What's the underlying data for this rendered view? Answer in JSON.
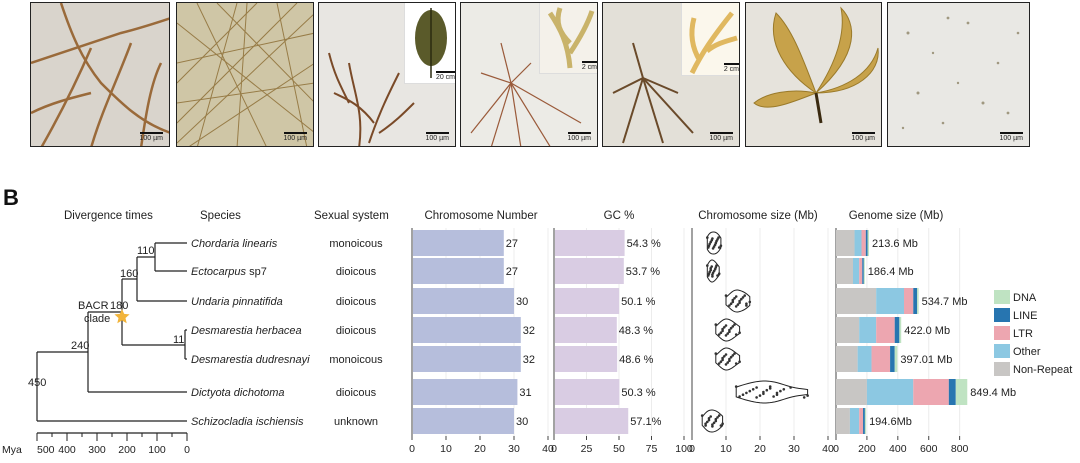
{
  "panel_b_letter": "B",
  "photos": [
    {
      "id": "p1",
      "scale": "100 µm",
      "bg": "#d9d4cc"
    },
    {
      "id": "p2",
      "scale": "100 µm",
      "bg": "#cfc6a6"
    },
    {
      "id": "p3",
      "scale": "100 µm",
      "bg": "#e8e6e2",
      "inset_scale": "20 cm"
    },
    {
      "id": "p4",
      "scale": "100 µm",
      "bg": "#ecebe6",
      "inset_scale": "2 cm"
    },
    {
      "id": "p5",
      "scale": "100 µm",
      "bg": "#e3e0d8",
      "inset_scale": "2 cm"
    },
    {
      "id": "p6",
      "scale": "100 µm",
      "bg": "#e6e3dc"
    },
    {
      "id": "p7",
      "scale": "100 µm",
      "bg": "#e9e8e4"
    }
  ],
  "headers": {
    "divergence": "Divergence times",
    "species": "Species",
    "sexual": "Sexual system",
    "chromosome_number": "Chromosome Number",
    "gc": "GC %",
    "chromosome_size": "Chromosome size (Mb)",
    "genome_size": "Genome size (Mb)"
  },
  "tree": {
    "node_labels": [
      "110",
      "160",
      "180",
      "11",
      "240",
      "450"
    ],
    "clade_label": [
      "BACR",
      "clade"
    ],
    "axis_unit": "Mya",
    "axis_ticks": [
      500,
      400,
      300,
      200,
      100,
      0
    ],
    "axis_tick_labels": [
      "500",
      "400",
      "300",
      "200",
      "100",
      "0"
    ]
  },
  "chart_data": [
    {
      "type": "bar",
      "title": "Chromosome Number",
      "categories": [
        "Chordaria linearis",
        "Ectocarpus sp7",
        "Undaria pinnatifida",
        "Desmarestia herbacea",
        "Desmarestia dudresnayi",
        "Dictyota dichotoma",
        "Schizocladia ischiensis"
      ],
      "values": [
        27,
        27,
        30,
        32,
        32,
        31,
        30
      ],
      "value_labels": [
        "27",
        "27",
        "30",
        "32",
        "32",
        "31",
        "30"
      ],
      "xlim": [
        0,
        40
      ],
      "xticks": [
        "0",
        "10",
        "20",
        "30",
        "40"
      ],
      "color": "#b6bedc"
    },
    {
      "type": "bar",
      "title": "GC %",
      "categories": [
        "Chordaria linearis",
        "Ectocarpus sp7",
        "Undaria pinnatifida",
        "Desmarestia herbacea",
        "Desmarestia dudresnayi",
        "Dictyota dichotoma",
        "Schizocladia ischiensis"
      ],
      "values": [
        54.3,
        53.7,
        50.1,
        48.3,
        48.6,
        50.3,
        57.1
      ],
      "value_labels": [
        "54.3 %",
        "53.7 %",
        "50.1 %",
        "48.3 %",
        "48.6 %",
        "50.3 %",
        "57.1%"
      ],
      "xlim": [
        0,
        100
      ],
      "xticks": [
        "0",
        "25",
        "50",
        "75",
        "100"
      ],
      "color": "#d9cce3"
    },
    {
      "type": "scatter",
      "title": "Chromosome size (Mb)",
      "xlim": [
        0,
        40
      ],
      "xticks": [
        "0",
        "10",
        "20",
        "30",
        "40"
      ],
      "series": [
        {
          "species": "Chordaria linearis",
          "values": [
            4.5,
            5,
            5.5,
            6,
            6.5,
            7,
            7.5,
            8,
            8.5,
            5.2,
            6.2,
            7.2,
            5.8,
            6.8,
            7.8,
            4.8
          ]
        },
        {
          "species": "Ectocarpus sp7",
          "values": [
            4.5,
            5,
            5.5,
            6,
            6.5,
            7,
            7.5,
            8,
            5.2,
            6.2,
            7.2,
            5.8,
            6.8,
            6,
            4.8,
            5.5
          ]
        },
        {
          "species": "Undaria pinnatifida",
          "values": [
            10,
            11,
            12,
            13,
            14,
            15,
            16,
            17,
            12.5,
            13.5,
            14.5,
            11.5,
            15.5,
            12,
            14,
            16,
            13
          ]
        },
        {
          "species": "Desmarestia herbacea",
          "values": [
            7,
            8,
            9,
            10,
            11,
            12,
            13,
            14,
            9.5,
            10.5,
            11.5,
            8.5,
            12.5,
            10,
            11,
            9
          ]
        },
        {
          "species": "Desmarestia dudresnayi",
          "values": [
            7,
            8,
            9,
            10,
            11,
            12,
            13,
            14,
            9.5,
            10.5,
            11.5,
            8.5,
            12.5,
            10,
            11,
            9
          ]
        },
        {
          "species": "Dictyota dichotoma",
          "values": [
            13,
            15,
            17,
            19,
            21,
            23,
            25,
            27,
            29,
            16,
            18,
            20,
            22,
            24,
            26,
            14,
            19,
            21,
            23,
            25,
            33,
            34
          ]
        },
        {
          "species": "Schizocladia ischiensis",
          "values": [
            3,
            4,
            5,
            6,
            7,
            8,
            9,
            4.5,
            5.5,
            6.5,
            7.5,
            5,
            6,
            4,
            7,
            8.5
          ]
        }
      ]
    },
    {
      "type": "bar",
      "stacked": true,
      "title": "Genome size (Mb)",
      "categories": [
        "Chordaria linearis",
        "Ectocarpus sp7",
        "Undaria pinnatifida",
        "Desmarestia herbacea",
        "Desmarestia dudresnayi",
        "Dictyota dichotoma",
        "Schizocladia ischiensis"
      ],
      "xlim": [
        0,
        880
      ],
      "xticks": [
        "0",
        "200",
        "400",
        "600",
        "800"
      ],
      "totals_labels": [
        "213.6 Mb",
        "186.4 Mb",
        "534.7 Mb",
        "422.0 Mb",
        "397.01 Mb",
        "849.4 Mb",
        "194.6Mb"
      ],
      "series": [
        {
          "name": "Non-Repeat",
          "color": "#c8c6c4",
          "values": [
            120,
            110,
            260,
            150,
            140,
            200,
            90
          ]
        },
        {
          "name": "Other",
          "color": "#8cc8e2",
          "values": [
            45,
            40,
            180,
            110,
            90,
            300,
            60
          ]
        },
        {
          "name": "LTR",
          "color": "#eda6b0",
          "values": [
            28,
            20,
            60,
            120,
            120,
            230,
            25
          ]
        },
        {
          "name": "LINE",
          "color": "#2775b0",
          "values": [
            12,
            10,
            25,
            30,
            30,
            45,
            12
          ]
        },
        {
          "name": "DNA",
          "color": "#bfe3c2",
          "values": [
            8.6,
            6.4,
            9.7,
            12,
            17.01,
            74.4,
            7.6
          ]
        }
      ],
      "legend": {
        "placement": "right",
        "order": [
          "DNA",
          "LINE",
          "LTR",
          "Other",
          "Non-Repeat"
        ]
      }
    }
  ],
  "species": [
    {
      "name": "Chordaria linearis",
      "italic": "Chordaria linearis",
      "suffix": "",
      "sexual": "monoicous"
    },
    {
      "name": "Ectocarpus sp7",
      "italic": "Ectocarpus",
      "suffix": " sp7",
      "sexual": "dioicous"
    },
    {
      "name": "Undaria pinnatifida",
      "italic": "Undaria pinnatifida",
      "suffix": "",
      "sexual": "dioicous"
    },
    {
      "name": "Desmarestia herbacea",
      "italic": "Desmarestia herbacea",
      "suffix": "",
      "sexual": "dioicous"
    },
    {
      "name": "Desmarestia dudresnayi",
      "italic": "Desmarestia dudresnayi",
      "suffix": "",
      "sexual": "monoicous"
    },
    {
      "name": "Dictyota dichotoma",
      "italic": "Dictyota dichotoma",
      "suffix": "",
      "sexual": "dioicous"
    },
    {
      "name": "Schizocladia ischiensis",
      "italic": "Schizocladia ischiensis",
      "suffix": "",
      "sexual": "unknown"
    }
  ]
}
